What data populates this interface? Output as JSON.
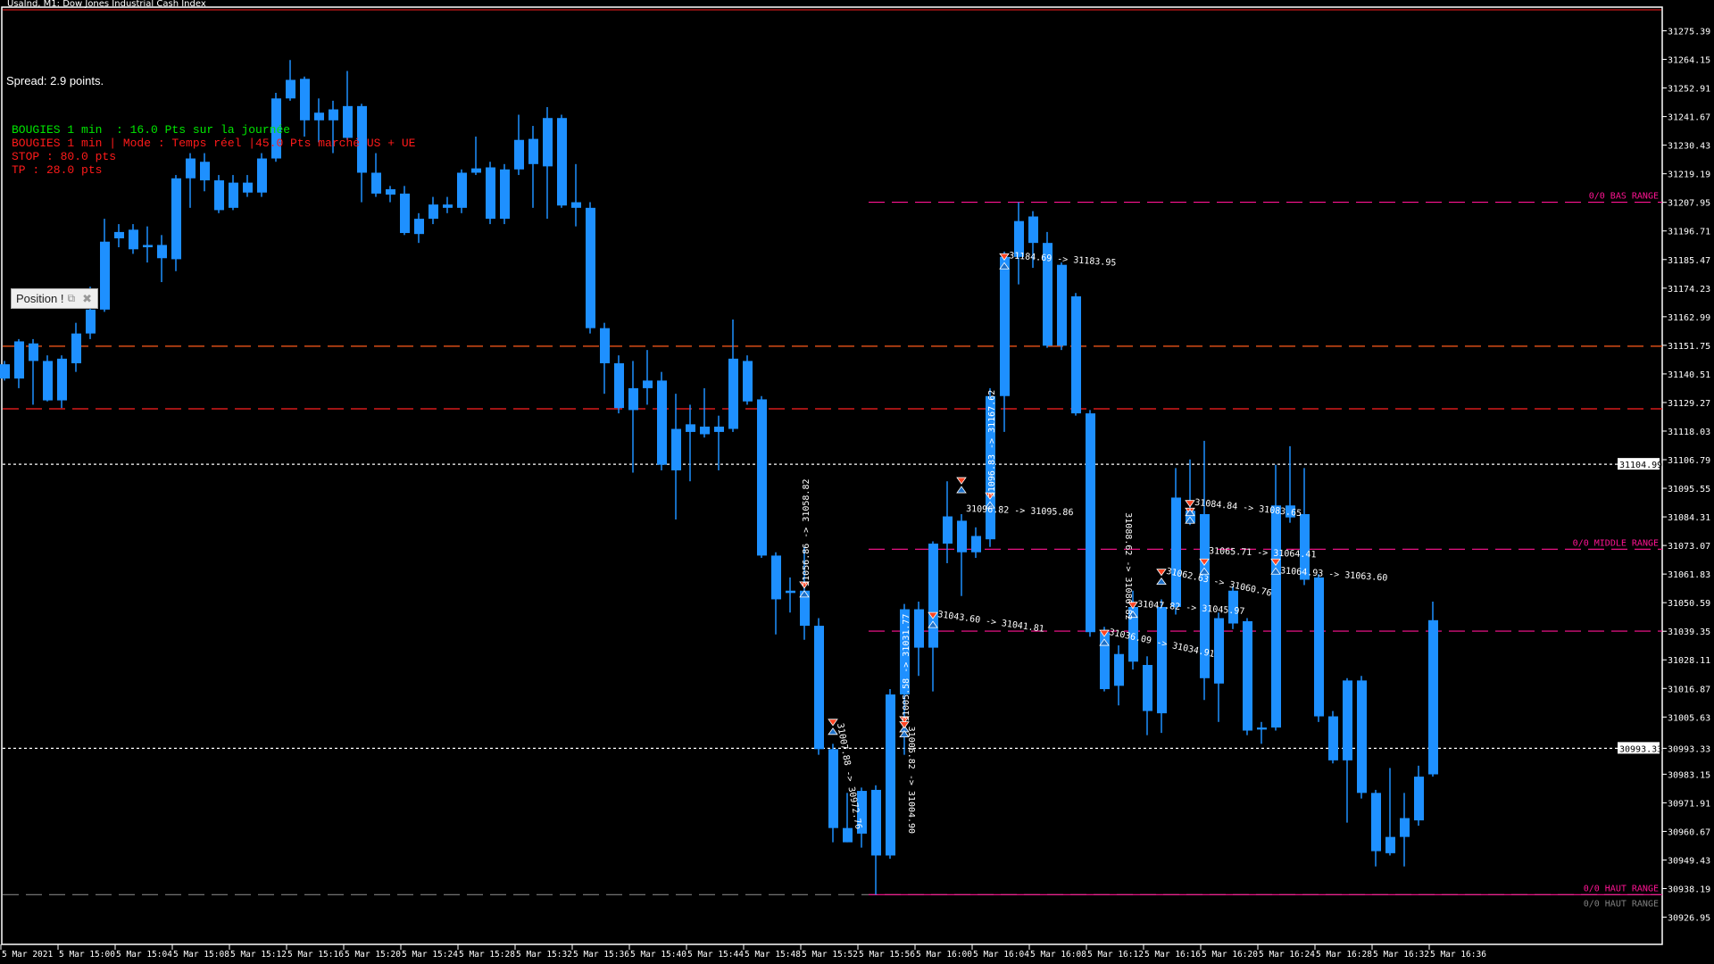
{
  "window": {
    "title": "UsaInd, M1:  Dow Jones Industrial Cash Index"
  },
  "overlay": {
    "spread": "Spread: 2.9 points.",
    "lines": [
      {
        "text": "BOUGIES 1 min  : 16.0 Pts sur la journée",
        "color": "#00e600"
      },
      {
        "text": "BOUGIES 1 min | Mode : Temps réel |45.0 Pts marché US + UE",
        "color": "#ff1a1a"
      },
      {
        "text": "STOP : 80.0 pts",
        "color": "#ff1a1a"
      },
      {
        "text": "TP : 28.0 pts",
        "color": "#ff1a1a"
      }
    ]
  },
  "position_panel": {
    "label": "Position !",
    "restore_icon": "restore-icon",
    "close_icon": "close-icon"
  },
  "colors": {
    "candle": "#1e90ff",
    "background": "#000000",
    "grid_text": "#ffffff",
    "range": "#ff1493",
    "stop_line": "#ff2020",
    "tp_line": "#ff5a1a"
  },
  "chart_data": {
    "type": "candlestick",
    "symbol": "UsaInd",
    "timeframe": "M1",
    "start_time": "5 Mar 14:56",
    "interval_minutes": 1,
    "y_ticks": [
      "31275.39",
      "31264.15",
      "31252.91",
      "31241.67",
      "31230.43",
      "31219.19",
      "31207.95",
      "31196.71",
      "31185.47",
      "31174.23",
      "31162.99",
      "31151.75",
      "31140.51",
      "31129.27",
      "31118.03",
      "31106.79",
      "31095.55",
      "31084.31",
      "31073.07",
      "31061.83",
      "31050.59",
      "31039.35",
      "31028.11",
      "31016.87",
      "31005.63",
      "30993.33",
      "30983.15",
      "30971.91",
      "30960.67",
      "30949.43",
      "30938.19",
      "30926.95"
    ],
    "x_labels": [
      "5 Mar 2021",
      "5 Mar 15:00",
      "5 Mar 15:04",
      "5 Mar 15:08",
      "5 Mar 15:12",
      "5 Mar 15:16",
      "5 Mar 15:20",
      "5 Mar 15:24",
      "5 Mar 15:28",
      "5 Mar 15:32",
      "5 Mar 15:36",
      "5 Mar 15:40",
      "5 Mar 15:44",
      "5 Mar 15:48",
      "5 Mar 15:52",
      "5 Mar 15:56",
      "5 Mar 16:00",
      "5 Mar 16:04",
      "5 Mar 16:08",
      "5 Mar 16:12",
      "5 Mar 16:16",
      "5 Mar 16:20",
      "5 Mar 16:24",
      "5 Mar 16:28",
      "5 Mar 16:32",
      "5 Mar 16:36"
    ],
    "price_labels": [
      {
        "value": "31104.99"
      },
      {
        "value": "30993.33"
      }
    ],
    "ohlc": [
      [
        31138.7,
        31145.6,
        31137.9,
        31144.3
      ],
      [
        31138.7,
        31154.2,
        31134.9,
        31153.3
      ],
      [
        31152.5,
        31154.2,
        31128.4,
        31145.6
      ],
      [
        31145.6,
        31147.8,
        31129.7,
        31130.1
      ],
      [
        31130.1,
        31147.8,
        31127.1,
        31146.5
      ],
      [
        31144.7,
        31160.6,
        31141.3,
        31156.4
      ],
      [
        31156.4,
        31174.8,
        31154.2,
        31165.8
      ],
      [
        31165.8,
        31201.5,
        31164.9,
        31192.5
      ],
      [
        31193.8,
        31199.4,
        31190.3,
        31196.3
      ],
      [
        31197.2,
        31199.4,
        31187.7,
        31189.5
      ],
      [
        31190.3,
        31198.5,
        31184.3,
        31191.2
      ],
      [
        31191.2,
        31195.1,
        31176.6,
        31186.0
      ],
      [
        31185.6,
        31218.7,
        31180.9,
        31217.4
      ],
      [
        31217.4,
        31227.3,
        31205.8,
        31225.2
      ],
      [
        31223.9,
        31227.3,
        31212.3,
        31216.6
      ],
      [
        31216.6,
        31218.7,
        31203.7,
        31204.9
      ],
      [
        31205.8,
        31218.7,
        31204.9,
        31215.7
      ],
      [
        31215.7,
        31218.7,
        31210.1,
        31211.8
      ],
      [
        31211.8,
        31227.3,
        31210.1,
        31225.2
      ],
      [
        31225.2,
        31251.0,
        31223.9,
        31248.8
      ],
      [
        31248.8,
        31263.9,
        31247.9,
        31256.1
      ],
      [
        31256.5,
        31257.4,
        31233.8,
        31240.2
      ],
      [
        31240.2,
        31248.8,
        31231.6,
        31243.2
      ],
      [
        31244.5,
        31247.9,
        31227.3,
        31240.2
      ],
      [
        31233.3,
        31259.6,
        31232.5,
        31245.8
      ],
      [
        31245.8,
        31246.7,
        31208.0,
        31219.6
      ],
      [
        31219.6,
        31227.3,
        31210.1,
        31211.4
      ],
      [
        31211.0,
        31214.4,
        31208.0,
        31213.1
      ],
      [
        31211.4,
        31214.4,
        31195.1,
        31195.9
      ],
      [
        31195.5,
        31203.7,
        31192.0,
        31201.5
      ],
      [
        31201.5,
        31210.1,
        31199.4,
        31207.1
      ],
      [
        31205.8,
        31210.1,
        31203.7,
        31207.1
      ],
      [
        31205.8,
        31220.9,
        31203.7,
        31219.6
      ],
      [
        31219.6,
        31233.8,
        31218.7,
        31221.3
      ],
      [
        31221.7,
        31223.9,
        31199.4,
        31201.5
      ],
      [
        31201.5,
        31223.0,
        31199.4,
        31220.9
      ],
      [
        31220.9,
        31242.4,
        31218.7,
        31232.5
      ],
      [
        31232.9,
        31238.0,
        31205.8,
        31223.0
      ],
      [
        31222.1,
        31245.4,
        31201.5,
        31241.1
      ],
      [
        31241.1,
        31242.4,
        31205.8,
        31206.7
      ],
      [
        31205.8,
        31223.0,
        31198.5,
        31208.0
      ],
      [
        31205.8,
        31208.0,
        31156.4,
        31158.5
      ],
      [
        31158.5,
        31160.6,
        31132.7,
        31144.7
      ],
      [
        31144.7,
        31147.8,
        31125.0,
        31127.1
      ],
      [
        31126.3,
        31145.6,
        31101.7,
        31134.9
      ],
      [
        31134.9,
        31149.9,
        31128.4,
        31137.9
      ],
      [
        31137.9,
        31141.3,
        31102.6,
        31104.8
      ],
      [
        31102.6,
        31132.7,
        31083.3,
        31118.9
      ],
      [
        31117.7,
        31128.4,
        31098.3,
        31120.7
      ],
      [
        31119.8,
        31134.9,
        31115.5,
        31116.8
      ],
      [
        31117.7,
        31124.1,
        31102.6,
        31119.8
      ],
      [
        31118.9,
        31161.9,
        31117.7,
        31146.5
      ],
      [
        31145.6,
        31147.8,
        31128.4,
        31129.7
      ],
      [
        31130.5,
        31131.8,
        31068.2,
        31069.1
      ],
      [
        31069.1,
        31070.4,
        31038.1,
        31051.9
      ],
      [
        31055.3,
        31060.5,
        31046.7,
        31054.4
      ],
      [
        31055.3,
        31072.5,
        31036.0,
        31041.5
      ],
      [
        31041.5,
        31044.5,
        30990.8,
        30993.0
      ],
      [
        30993.0,
        30995.1,
        30956.4,
        30962.0
      ],
      [
        30962.0,
        30975.8,
        30956.4,
        30956.4
      ],
      [
        30959.8,
        30977.9,
        30954.3,
        30976.6
      ],
      [
        30977.0,
        30978.8,
        30935.8,
        30951.2
      ],
      [
        30951.2,
        31016.6,
        30949.9,
        31014.5
      ],
      [
        31014.5,
        31050.1,
        30990.8,
        31048.0
      ],
      [
        31048.0,
        31051.0,
        31021.8,
        31032.9
      ],
      [
        31032.9,
        31074.7,
        31015.7,
        31073.8
      ],
      [
        31073.8,
        31098.3,
        31066.1,
        31084.5
      ],
      [
        31082.8,
        31085.4,
        31053.2,
        31070.4
      ],
      [
        31070.4,
        31080.2,
        31068.2,
        31076.8
      ],
      [
        31075.5,
        31134.9,
        31072.5,
        31131.8
      ],
      [
        31131.8,
        31188.6,
        31117.7,
        31186.5
      ],
      [
        31186.5,
        31208.0,
        31175.7,
        31200.6
      ],
      [
        31202.4,
        31204.5,
        31182.2,
        31192.0
      ],
      [
        31192.0,
        31196.3,
        31150.8,
        31151.6
      ],
      [
        31151.6,
        31184.3,
        31149.9,
        31183.4
      ],
      [
        31171.0,
        31172.3,
        31124.1,
        31125.0
      ],
      [
        31125.0,
        31126.3,
        31037.2,
        31039.0
      ],
      [
        31039.0,
        31041.1,
        31015.7,
        31016.6
      ],
      [
        31017.9,
        31033.8,
        31010.2,
        31030.4
      ],
      [
        31048.9,
        31055.3,
        31024.3,
        31027.4
      ],
      [
        31026.1,
        31029.5,
        30998.5,
        31008.0
      ],
      [
        31007.1,
        31051.9,
        30999.4,
        31048.9
      ],
      [
        31048.9,
        31103.5,
        31045.9,
        31091.9
      ],
      [
        31086.7,
        31106.9,
        31081.1,
        31082.0
      ],
      [
        31085.4,
        31114.2,
        31012.3,
        31020.9
      ],
      [
        31018.8,
        31046.7,
        31003.7,
        31044.5
      ],
      [
        31042.4,
        31057.0,
        31040.2,
        31055.3
      ],
      [
        31043.3,
        31044.5,
        30998.5,
        31000.3
      ],
      [
        31000.7,
        31003.7,
        30995.1,
        31001.5
      ],
      [
        31001.5,
        31104.8,
        31000.3,
        31088.8
      ],
      [
        31088.8,
        31112.1,
        31082.0,
        31084.1
      ],
      [
        31085.4,
        31103.5,
        31057.5,
        31059.6
      ],
      [
        31060.5,
        31061.8,
        31003.7,
        31005.9
      ],
      [
        31005.9,
        31008.0,
        30987.4,
        30988.6
      ],
      [
        30988.6,
        31020.9,
        30964.1,
        31020.0
      ],
      [
        31020.0,
        31021.8,
        30973.6,
        30975.8
      ],
      [
        30975.8,
        30977.0,
        30946.9,
        30952.9
      ],
      [
        30952.1,
        30985.6,
        30951.2,
        30958.5
      ],
      [
        30958.5,
        30975.8,
        30946.9,
        30965.9
      ],
      [
        30965.0,
        30986.5,
        30962.9,
        30982.2
      ],
      [
        30983.1,
        31051.0,
        30982.2,
        31043.7
      ]
    ],
    "hlines": [
      {
        "price": 31151.4,
        "color": "#ff5a1a",
        "style": "dash",
        "from_index": 0
      },
      {
        "price": 31126.8,
        "color": "#ff2020",
        "style": "dash",
        "from_index": 0
      },
      {
        "price": 31104.99,
        "color": "#ffffff",
        "style": "dot",
        "from_index": 0
      },
      {
        "price": 30993.33,
        "color": "#ffffff",
        "style": "dot",
        "from_index": 0
      },
      {
        "price": 30935.8,
        "color": "#808080",
        "style": "dash",
        "from_index": 0
      },
      {
        "price": 31208.0,
        "color": "#ff1493",
        "style": "dash",
        "from_index": 61,
        "label": "0/0 BAS RANGE"
      },
      {
        "price": 31071.6,
        "color": "#ff1493",
        "style": "dash",
        "from_index": 61,
        "label": "0/0 MIDDLE RANGE"
      },
      {
        "price": 31039.4,
        "color": "#ff1493",
        "style": "dash",
        "from_index": 61
      },
      {
        "price": 30935.8,
        "color": "#ff1493",
        "style": "solid",
        "from_index": 61,
        "label": "0/0 HAUT RANGE",
        "ghost_label": "0/0 HAUT RANGE"
      }
    ],
    "trades": [
      {
        "text": "31056.86 -> 31058.82",
        "index": 56,
        "price": 31057,
        "rotate": -90
      },
      {
        "text": "31007.88 -> 30972.76",
        "index": 58,
        "price": 31003,
        "rotate": 80
      },
      {
        "text": "31005.58 -> 31031.77",
        "index": 63,
        "price": 31004,
        "rotate": -90
      },
      {
        "text": "31006.82 -> 31004.90",
        "index": 63,
        "price": 31002,
        "rotate": 90
      },
      {
        "text": "31043.60 -> 31041.81",
        "index": 65,
        "price": 31045,
        "rotate": 8
      },
      {
        "text": "31096.83 -> 31167.62",
        "index": 69,
        "price": 31092,
        "rotate": -90
      },
      {
        "text": "31096.82 -> 31095.86",
        "index": 67,
        "price": 31098,
        "rotate": 2
      },
      {
        "text": "31184.69 -> 31183.95",
        "index": 70,
        "price": 31186,
        "rotate": 4
      },
      {
        "text": "31036.09 -> 31034.91",
        "index": 77,
        "price": 31038,
        "rotate": 12
      },
      {
        "text": "31047.82 -> 31045.97",
        "index": 79,
        "price": 31049,
        "rotate": 4
      },
      {
        "text": "31062.63 -> 31060.76",
        "index": 81,
        "price": 31062,
        "rotate": 12
      },
      {
        "text": "31088.62 -> 31086.82",
        "index": 83,
        "price": 31086,
        "rotate": 90
      },
      {
        "text": "31084.84 -> 31083.65",
        "index": 83,
        "price": 31089,
        "rotate": 6
      },
      {
        "text": "31065.71 -> 31064.41",
        "index": 84,
        "price": 31066,
        "rotate": 2
      },
      {
        "text": "31064.93 -> 31063.60",
        "index": 89,
        "price": 31066,
        "rotate": 4
      }
    ]
  }
}
